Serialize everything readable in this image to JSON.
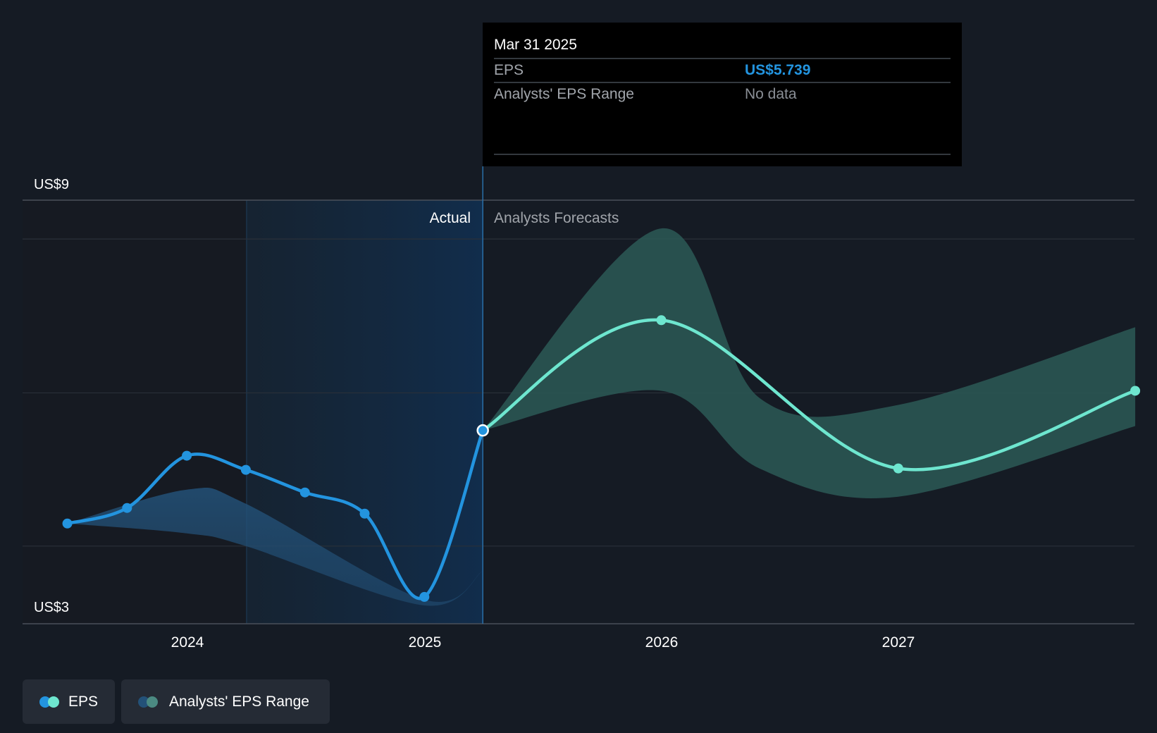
{
  "tooltip": {
    "date": "Mar 31 2025",
    "rows": [
      {
        "label": "EPS",
        "value": "US$5.739"
      },
      {
        "label": "Analysts' EPS Range",
        "value": "No data"
      }
    ]
  },
  "region_labels": {
    "actual": "Actual",
    "forecast": "Analysts Forecasts"
  },
  "legend": {
    "eps": "EPS",
    "range": "Analysts' EPS Range"
  },
  "colors": {
    "background": "#151b24",
    "eps_actual": "#2394df",
    "eps_forecast": "#6ee6cf",
    "range_actual": "#235178",
    "range_forecast": "#2c5956",
    "tooltip_value": "#2394df",
    "tooltip_nodata": "#8a8f96"
  },
  "chart_data": {
    "type": "line",
    "x_ticks": [
      "2024",
      "2025",
      "2026",
      "2027"
    ],
    "y_tick_labels": [
      "US$9",
      "US$3"
    ],
    "ylim": [
      3,
      9
    ],
    "grid": true,
    "highlight_date": "2025-03-31",
    "actual_range_start": "2024-03-31",
    "series": [
      {
        "name": "EPS",
        "segment": "actual",
        "x": [
          "2023-06-30",
          "2023-09-30",
          "2023-12-31",
          "2024-03-31",
          "2024-06-30",
          "2024-09-30",
          "2024-12-31",
          "2025-03-31"
        ],
        "y": [
          4.42,
          4.64,
          5.38,
          5.18,
          4.86,
          4.56,
          3.38,
          5.739
        ]
      },
      {
        "name": "EPS",
        "segment": "forecast",
        "x": [
          "2025-03-31",
          "2025-12-31",
          "2026-12-31",
          "2027-12-31"
        ],
        "y": [
          5.739,
          7.3,
          5.2,
          6.3
        ]
      }
    ],
    "range": [
      {
        "segment": "actual",
        "x": [
          "2023-06-30",
          "2023-12-31",
          "2024-03-31",
          "2024-12-31",
          "2025-03-31"
        ],
        "low": [
          4.42,
          4.28,
          4.1,
          3.26,
          3.75
        ],
        "high": [
          4.42,
          4.9,
          4.7,
          3.34,
          3.75
        ]
      },
      {
        "segment": "forecast",
        "x": [
          "2025-03-31",
          "2025-12-31",
          "2026-05-31",
          "2026-12-31",
          "2027-12-31"
        ],
        "low": [
          5.739,
          6.3,
          5.2,
          4.8,
          5.8
        ],
        "high": [
          5.739,
          8.6,
          6.2,
          6.1,
          7.2
        ]
      }
    ]
  }
}
